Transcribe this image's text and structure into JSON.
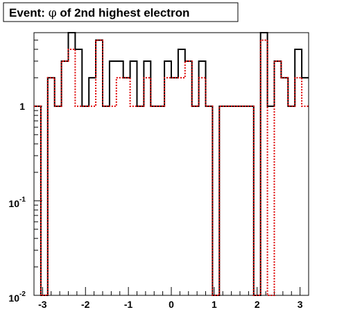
{
  "title_prefix": "Event: ",
  "title_symbol": "φ",
  "title_suffix": " of 2nd highest electron",
  "chart_data": {
    "type": "histogram",
    "title": "Event: φ of 2nd highest electron",
    "xlabel": "",
    "ylabel": "",
    "xlim": [
      -3.2,
      3.2
    ],
    "ylim": [
      0.01,
      6
    ],
    "log_y": true,
    "grid": false,
    "legend": "none",
    "x_ticks": [
      "-3",
      "-2",
      "-1",
      "0",
      "1",
      "2",
      "3"
    ],
    "y_ticks": [
      {
        "base": "1",
        "exp": ""
      },
      {
        "base": "10",
        "exp": "-1"
      },
      {
        "base": "10",
        "exp": "-2"
      }
    ],
    "bin_edges": [
      -3.2,
      -3.04,
      -2.88,
      -2.72,
      -2.56,
      -2.4,
      -2.24,
      -2.08,
      -1.92,
      -1.76,
      -1.6,
      -1.44,
      -1.28,
      -1.12,
      -0.96,
      -0.8,
      -0.64,
      -0.48,
      -0.32,
      -0.16,
      0.0,
      0.16,
      0.32,
      0.48,
      0.64,
      0.8,
      0.96,
      1.12,
      1.28,
      1.44,
      1.6,
      1.76,
      1.92,
      2.08,
      2.24,
      2.4,
      2.56,
      2.72,
      2.88,
      3.04,
      3.2
    ],
    "series": [
      {
        "color": "#000000",
        "style": "solid",
        "values": [
          1,
          0.01,
          2,
          1,
          3,
          6,
          4,
          1,
          2,
          5,
          1,
          3,
          3,
          2,
          3,
          1,
          3,
          1,
          1,
          3,
          2,
          4,
          3,
          1,
          3,
          1,
          0.01,
          1,
          1,
          1,
          1,
          1,
          0.01,
          6,
          1,
          3,
          2,
          1,
          4,
          2
        ]
      },
      {
        "color": "#dd0000",
        "style": "dotted",
        "values": [
          1,
          0.01,
          2,
          1,
          3,
          4,
          1,
          1,
          1,
          5,
          1,
          1,
          2,
          2,
          1,
          1,
          2,
          1,
          1,
          2,
          2,
          2,
          3,
          1,
          2,
          1,
          0.01,
          1,
          1,
          1,
          1,
          1,
          0.01,
          5,
          0.01,
          3,
          2,
          1,
          2,
          1
        ]
      }
    ]
  }
}
